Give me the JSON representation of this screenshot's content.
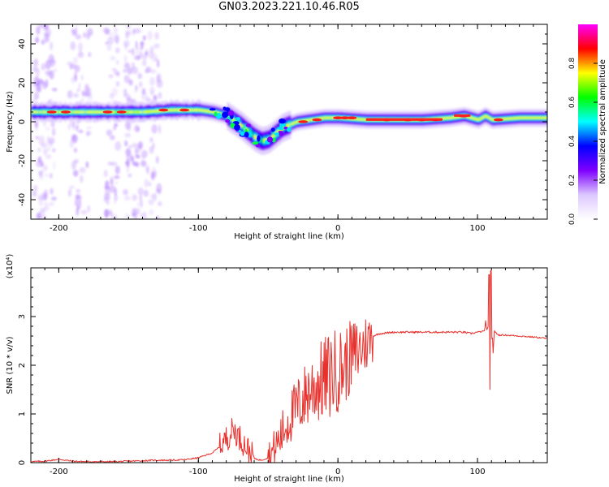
{
  "title": "GN03.2023.221.10.46.R05",
  "colors": {
    "snr_line": "#e8302c",
    "axis": "#000000"
  },
  "chart_data": [
    {
      "type": "heatmap",
      "xlabel": "Height of straight line (km)",
      "ylabel": "Frequency (Hz)",
      "xlim": [
        -220,
        150
      ],
      "ylim": [
        -50,
        50
      ],
      "x_ticks": [
        -200,
        -100,
        0,
        100
      ],
      "y_ticks": [
        40,
        20,
        0,
        -20,
        -40
      ],
      "colorbar": {
        "label": "Normalized spectral amplitude",
        "range": [
          0,
          1
        ],
        "ticks": [
          0.0,
          0.2,
          0.4,
          0.6,
          0.8
        ],
        "colormap": [
          "#ffffff",
          "#dcc8ff",
          "#7f00ff",
          "#0000ff",
          "#00ffff",
          "#00ff00",
          "#ffff00",
          "#ff0000",
          "#ff00ff"
        ]
      },
      "ridge": {
        "x": [
          -220,
          -200,
          -180,
          -160,
          -140,
          -120,
          -100,
          -90,
          -80,
          -70,
          -60,
          -55,
          -50,
          -45,
          -40,
          -30,
          -20,
          -10,
          0,
          20,
          40,
          60,
          80,
          90,
          100,
          105,
          110,
          130,
          150
        ],
        "frequency": [
          5,
          5,
          5,
          5,
          5,
          6,
          6,
          5,
          3,
          -2,
          -8,
          -10,
          -9,
          -6,
          -3,
          0,
          1,
          2,
          2,
          1,
          1,
          1,
          2,
          3,
          1,
          3,
          1,
          2,
          2
        ]
      }
    },
    {
      "type": "line",
      "xlabel": "Height of straight line (km)",
      "ylabel": "SNR (10 * v/v)",
      "y_scale_label": "(x10⁴)",
      "xlim": [
        -220,
        150
      ],
      "ylim": [
        0,
        4
      ],
      "x_ticks": [
        -200,
        -100,
        0,
        100
      ],
      "y_ticks": [
        0,
        1,
        2,
        3
      ],
      "series": [
        {
          "x": [
            -220,
            -210,
            -200,
            -195,
            -190,
            -180,
            -170,
            -160,
            -150,
            -140,
            -130,
            -120,
            -110,
            -100,
            -95,
            -90,
            -85,
            -80,
            -78,
            -75,
            -70,
            -65,
            -60,
            -55,
            -50,
            -45,
            -40,
            -35,
            -30,
            -25,
            -20,
            -15,
            -10,
            -5,
            0,
            5,
            10,
            15,
            20,
            25,
            30,
            40,
            50,
            60,
            70,
            80,
            90,
            95,
            100,
            105,
            108,
            110,
            112,
            115,
            120,
            130,
            140,
            150
          ],
          "y": [
            0.02,
            0.03,
            0.07,
            0.05,
            0.03,
            0.02,
            0.02,
            0.02,
            0.03,
            0.04,
            0.05,
            0.05,
            0.06,
            0.1,
            0.15,
            0.2,
            0.32,
            0.5,
            0.55,
            0.7,
            0.5,
            0.3,
            0.08,
            0.05,
            0.1,
            0.3,
            0.6,
            0.9,
            1.1,
            1.3,
            1.5,
            1.6,
            1.7,
            1.8,
            1.9,
            2.0,
            2.2,
            2.3,
            2.45,
            2.6,
            2.65,
            2.68,
            2.68,
            2.68,
            2.68,
            2.68,
            2.68,
            2.65,
            2.68,
            2.7,
            3.5,
            1.6,
            2.7,
            2.62,
            2.62,
            2.6,
            2.58,
            2.55
          ]
        }
      ]
    }
  ]
}
